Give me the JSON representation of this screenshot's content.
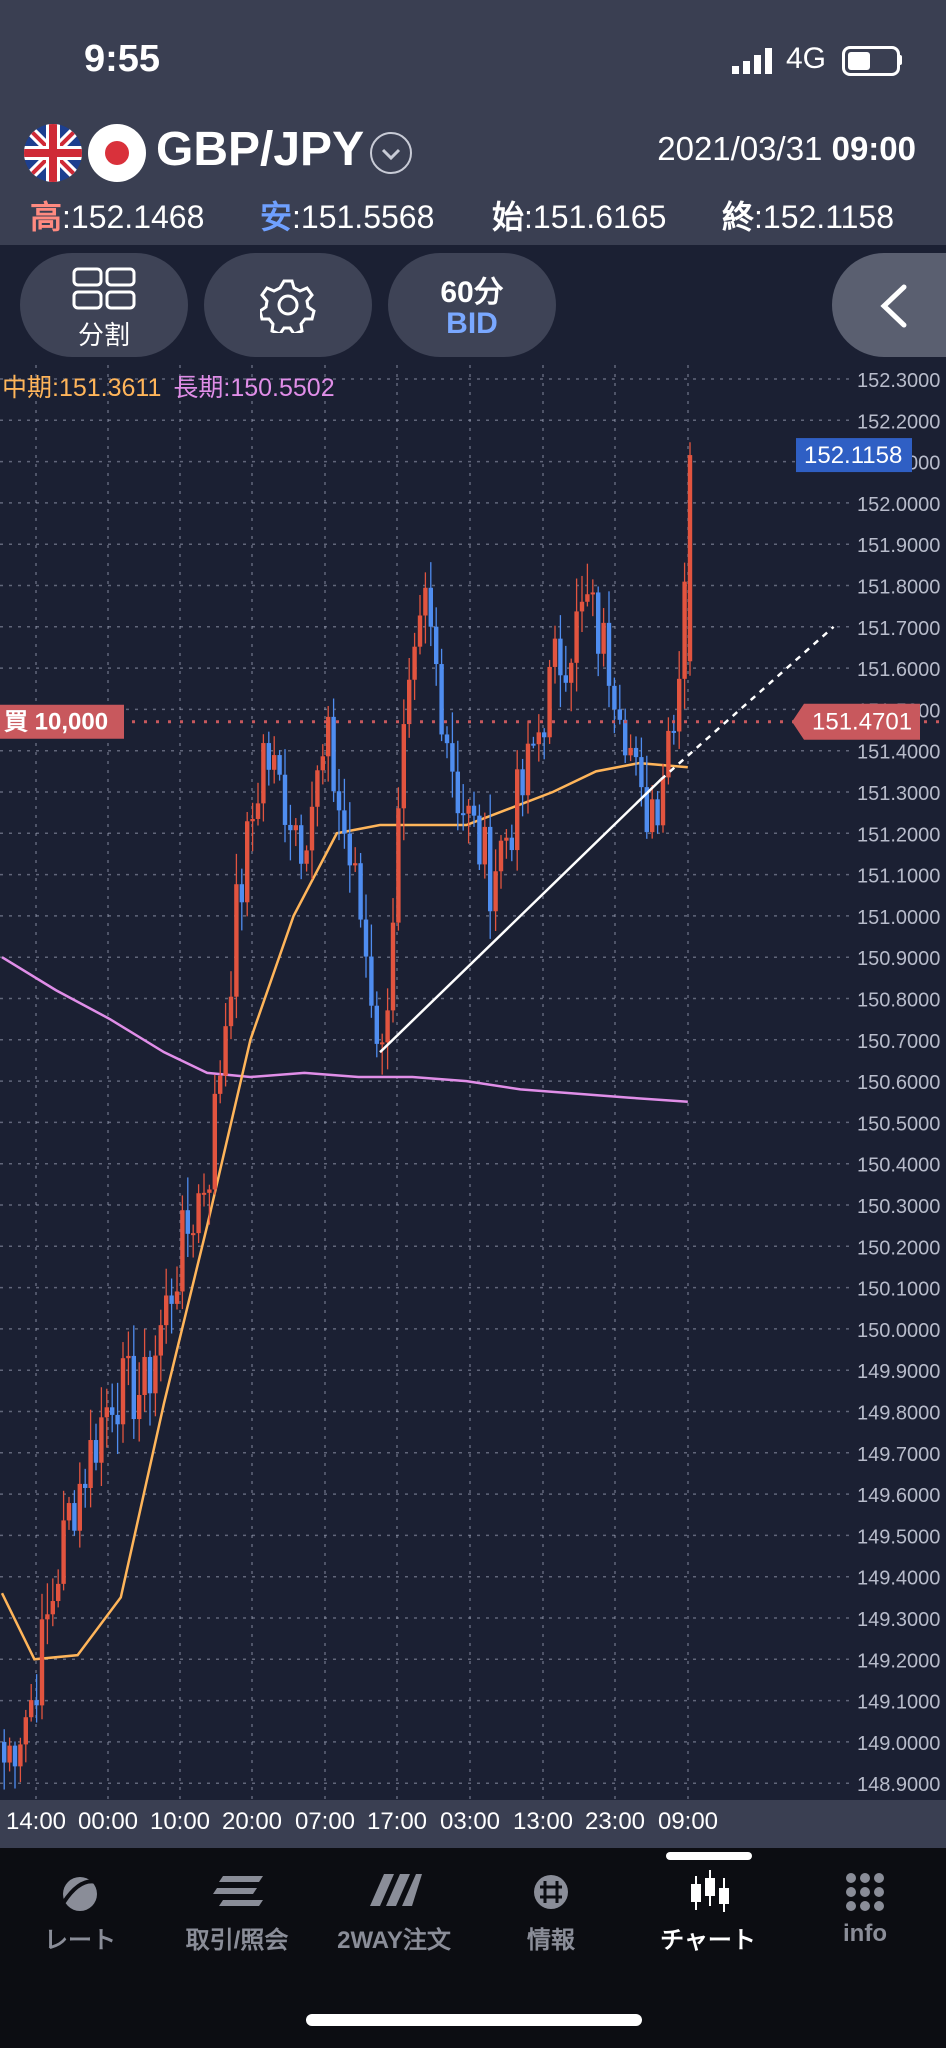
{
  "status_bar": {
    "time": "9:55",
    "network": "4G"
  },
  "header": {
    "pair": "GBP/JPY",
    "date": "2021/03/31",
    "time": "09:00",
    "ohlc": [
      {
        "key": "高",
        "value": ":152.1468",
        "color": "#ff8a80"
      },
      {
        "key": "安",
        "value": ":151.5568",
        "color": "#6fa0ff"
      },
      {
        "key": "始",
        "value": ":151.6165",
        "color": "#ffffff"
      },
      {
        "key": "終",
        "value": ":152.1158",
        "color": "#ffffff"
      }
    ]
  },
  "toolbar": {
    "split_label": "分割",
    "interval": "60分",
    "price_type": "BID"
  },
  "chart": {
    "ma_mid_label": "中期:151.3611",
    "ma_long_label": "長期:150.5502",
    "current_price": "152.1158",
    "position_label": "買 10,000",
    "position_price": "151.4701",
    "colors": {
      "bg": "#1b2033",
      "up": "#e2543f",
      "down": "#4f8df0",
      "mid_ma": "#ffb55a",
      "long_ma": "#e08ee8",
      "position": "#c8585d",
      "current": "#2f5fc4"
    }
  },
  "chart_data": {
    "type": "candlestick",
    "title": "",
    "xlabel": "",
    "ylabel": "",
    "ylim": [
      148.85,
      152.3
    ],
    "yticks": [
      "152.3000",
      "152.2000",
      "152.1000",
      "152.0000",
      "151.9000",
      "151.8000",
      "151.7000",
      "151.6000",
      "151.5000",
      "151.4000",
      "151.3000",
      "151.2000",
      "151.1000",
      "151.0000",
      "150.9000",
      "150.8000",
      "150.7000",
      "150.6000",
      "150.5000",
      "150.4000",
      "150.3000",
      "150.2000",
      "150.1000",
      "150.0000",
      "149.9000",
      "149.8000",
      "149.7000",
      "149.6000",
      "149.5000",
      "149.4000",
      "149.3000",
      "149.2000",
      "149.1000",
      "149.0000",
      "148.9000"
    ],
    "xticks": [
      "14:00",
      "00:00",
      "10:00",
      "20:00",
      "07:00",
      "17:00",
      "03:00",
      "13:00",
      "23:00",
      "09:00"
    ],
    "anchors": [
      {
        "i": 0,
        "p": 148.95
      },
      {
        "i": 5,
        "p": 149.1
      },
      {
        "i": 12,
        "p": 149.55
      },
      {
        "i": 20,
        "p": 149.85
      },
      {
        "i": 26,
        "p": 149.85
      },
      {
        "i": 33,
        "p": 150.2
      },
      {
        "i": 38,
        "p": 150.4
      },
      {
        "i": 43,
        "p": 151.0
      },
      {
        "i": 48,
        "p": 151.4
      },
      {
        "i": 55,
        "p": 151.2
      },
      {
        "i": 60,
        "p": 151.4
      },
      {
        "i": 66,
        "p": 151.0
      },
      {
        "i": 70,
        "p": 150.65
      },
      {
        "i": 74,
        "p": 151.4
      },
      {
        "i": 78,
        "p": 151.75
      },
      {
        "i": 84,
        "p": 151.3
      },
      {
        "i": 90,
        "p": 151.1
      },
      {
        "i": 96,
        "p": 151.3
      },
      {
        "i": 102,
        "p": 151.6
      },
      {
        "i": 108,
        "p": 151.75
      },
      {
        "i": 114,
        "p": 151.55
      },
      {
        "i": 118,
        "p": 151.25
      },
      {
        "i": 121,
        "p": 151.3
      },
      {
        "i": 125,
        "p": 151.6
      },
      {
        "i": 127,
        "p": 152.1158
      }
    ],
    "mid_ma": [
      [
        0,
        149.36
      ],
      [
        6,
        149.2
      ],
      [
        14,
        149.21
      ],
      [
        22,
        149.35
      ],
      [
        30,
        149.82
      ],
      [
        38,
        150.25
      ],
      [
        46,
        150.7
      ],
      [
        54,
        151.0
      ],
      [
        62,
        151.2
      ],
      [
        70,
        151.22
      ],
      [
        78,
        151.22
      ],
      [
        86,
        151.22
      ],
      [
        94,
        151.26
      ],
      [
        102,
        151.3
      ],
      [
        110,
        151.35
      ],
      [
        118,
        151.37
      ],
      [
        127,
        151.36
      ]
    ],
    "long_ma": [
      [
        0,
        150.9
      ],
      [
        10,
        150.82
      ],
      [
        20,
        150.75
      ],
      [
        30,
        150.67
      ],
      [
        38,
        150.62
      ],
      [
        46,
        150.61
      ],
      [
        56,
        150.62
      ],
      [
        66,
        150.61
      ],
      [
        76,
        150.61
      ],
      [
        86,
        150.6
      ],
      [
        96,
        150.58
      ],
      [
        106,
        150.57
      ],
      [
        116,
        150.56
      ],
      [
        127,
        150.55
      ]
    ],
    "trendline": [
      [
        70,
        150.67
      ],
      [
        122,
        151.33
      ]
    ],
    "trendline_extension": [
      [
        122,
        151.33
      ],
      [
        154,
        151.7
      ]
    ]
  },
  "bottom_nav": [
    {
      "label": "レート",
      "icon": "rate-icon",
      "active": false
    },
    {
      "label": "取引/照会",
      "icon": "trade-icon",
      "active": false
    },
    {
      "label": "2WAY注文",
      "icon": "twoway-order-icon",
      "active": false
    },
    {
      "label": "情報",
      "icon": "info-globe-icon",
      "active": false
    },
    {
      "label": "チャート",
      "icon": "chart-icon",
      "active": true
    },
    {
      "label": "info",
      "icon": "grid-icon",
      "active": false
    }
  ]
}
